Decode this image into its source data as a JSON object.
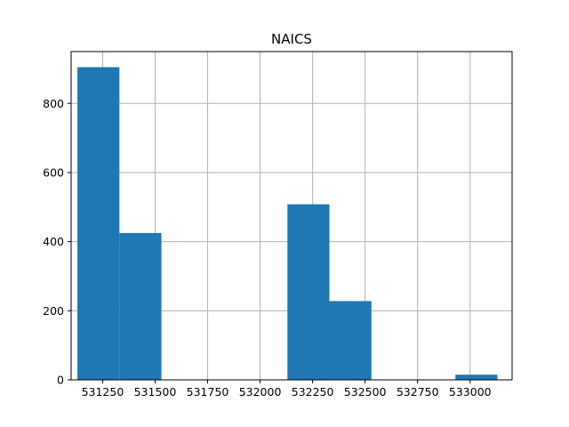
{
  "chart_data": {
    "type": "bar",
    "title": "NAICS",
    "xlabel": "",
    "ylabel": "",
    "bin_edges": [
      531130,
      531330,
      531530,
      531730,
      531930,
      532130,
      532330,
      532530,
      532730,
      532930,
      533130
    ],
    "values": [
      905,
      425,
      0,
      0,
      0,
      508,
      228,
      0,
      0,
      15
    ],
    "xlim": [
      531100,
      533200
    ],
    "ylim": [
      0,
      950
    ],
    "xticks": [
      531250,
      531500,
      531750,
      532000,
      532250,
      532500,
      532750,
      533000
    ],
    "xtick_labels": [
      "531250",
      "531500",
      "531750",
      "532000",
      "532250",
      "532500",
      "532750",
      "533000"
    ],
    "yticks": [
      0,
      200,
      400,
      600,
      800
    ],
    "ytick_labels": [
      "0",
      "200",
      "400",
      "600",
      "800"
    ],
    "grid": true,
    "bar_color": "#1f77b4",
    "grid_color": "#b0b0b0"
  }
}
